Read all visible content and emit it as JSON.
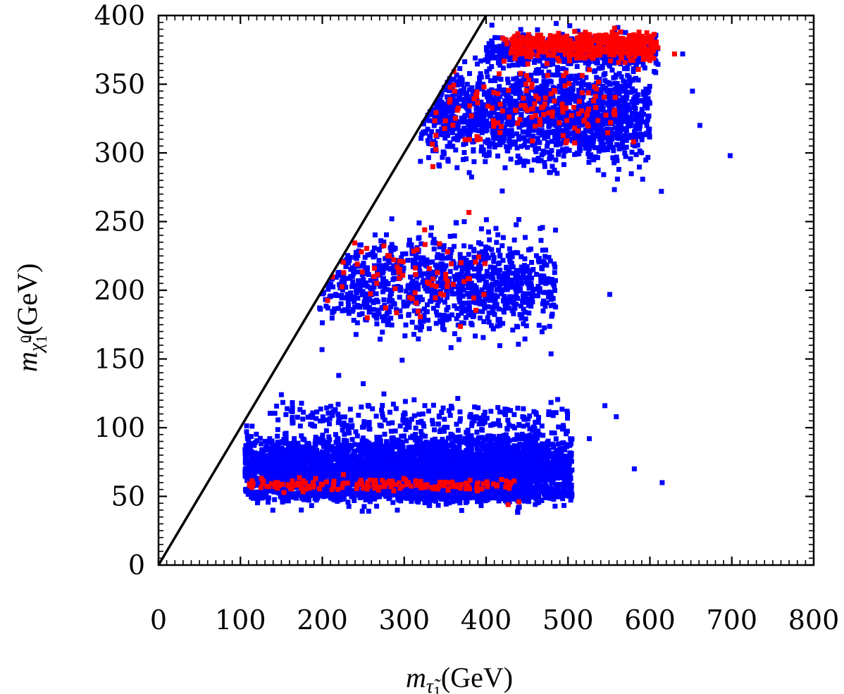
{
  "chart_data": {
    "type": "scatter",
    "title": "",
    "xlabel": {
      "symbol": "m",
      "subscript": "τ̃",
      "subscript_index": "1",
      "unit": "(GeV)"
    },
    "ylabel": {
      "symbol": "m",
      "subscript": "χ̃",
      "subscript_index": "1",
      "superscript": "0",
      "unit": "(GeV)"
    },
    "xlim": [
      0,
      800
    ],
    "ylim": [
      0,
      400
    ],
    "x_ticks": [
      "0",
      "100",
      "200",
      "300",
      "400",
      "500",
      "600",
      "700",
      "800"
    ],
    "y_ticks": [
      "0",
      "50",
      "100",
      "150",
      "200",
      "250",
      "300",
      "350",
      "400"
    ],
    "grid": false,
    "legend": "none",
    "reference_line": {
      "label": "",
      "from": [
        0,
        0
      ],
      "to": [
        400,
        400
      ],
      "color": "#000000"
    },
    "series": [
      {
        "color": "#0000ff",
        "values": "dense point clouds",
        "clusters": [
          {
            "x_range": [
              105,
              505
            ],
            "y_center": 72,
            "y_spread": 14,
            "count": 3800
          },
          {
            "x_range": [
              105,
              505
            ],
            "y_center": 52,
            "y_spread": 4,
            "count": 700
          },
          {
            "x_range": [
              135,
              500
            ],
            "y_center": 106,
            "y_spread": 9,
            "count": 220
          },
          {
            "x_range": [
              195,
              485
            ],
            "y_center": 205,
            "y_spread": 22,
            "count": 1100
          },
          {
            "x_range": [
              318,
              600
            ],
            "y_center": 328,
            "y_spread": 22,
            "count": 1700
          },
          {
            "x_range": [
              400,
              610
            ],
            "y_center": 374,
            "y_spread": 8,
            "count": 650
          }
        ],
        "outliers": [
          [
            698,
            298
          ],
          [
            661,
            320
          ],
          [
            614,
            272
          ],
          [
            652,
            345
          ],
          [
            640,
            372
          ],
          [
            581,
            70
          ],
          [
            615,
            60
          ],
          [
            551,
            197
          ],
          [
            545,
            116
          ],
          [
            559,
            108
          ],
          [
            250,
            132
          ],
          [
            220,
            138
          ],
          [
            150,
            124
          ],
          [
            526,
            92
          ]
        ]
      },
      {
        "color": "#ff0000",
        "values": "sparser point clouds",
        "clusters": [
          {
            "x_range": [
              110,
              435
            ],
            "y_center": 58,
            "y_spread": 3,
            "count": 170
          },
          {
            "x_range": [
              200,
              400
            ],
            "y_center": 208,
            "y_spread": 18,
            "count": 75
          },
          {
            "x_range": [
              320,
              560
            ],
            "y_center": 330,
            "y_spread": 20,
            "count": 140
          },
          {
            "x_range": [
              430,
              610
            ],
            "y_center": 376,
            "y_spread": 6,
            "count": 300
          },
          {
            "x_range": [
              420,
              610
            ],
            "y_center": 382,
            "y_spread": 3,
            "count": 200
          }
        ],
        "outliers": [
          [
            427,
            44
          ],
          [
            440,
            46
          ],
          [
            630,
            372
          ],
          [
            580,
            308
          ],
          [
            335,
            290
          ],
          [
            255,
            180
          ]
        ]
      }
    ]
  }
}
